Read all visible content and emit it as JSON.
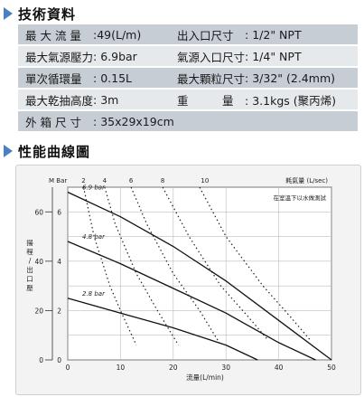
{
  "section1": {
    "title": "技術資料"
  },
  "specs": [
    [
      {
        "label": "最 大 流 量",
        "value": ":49(L/m)"
      },
      {
        "label": "出入口尺寸",
        "value": ": 1/2\" NPT"
      }
    ],
    [
      {
        "label": "最大氣源壓力",
        "value": ": 6.9bar"
      },
      {
        "label": "氣源入口尺寸",
        "value": ": 1/4\" NPT"
      }
    ],
    [
      {
        "label": "單次循環量",
        "value": ": 0.15L"
      },
      {
        "label": "最大顆粒尺寸",
        "value": ": 3/32\" (2.4mm)"
      }
    ],
    [
      {
        "label": "最大乾抽高度",
        "value": ": 3m"
      },
      {
        "label": "重　　　量",
        "value": ": 3.1kgs (聚丙烯)"
      }
    ],
    [
      {
        "label": "外 箱 尺 寸",
        "value": ": 35x29x19cm"
      }
    ]
  ],
  "section2": {
    "title": "性能曲線圖"
  },
  "chart_data": {
    "type": "line",
    "xlabel": "流量(L/min)",
    "x_ticks": [
      0,
      10,
      20,
      30,
      40,
      50
    ],
    "xlim": [
      0,
      50
    ],
    "y_left_ticks": [
      0,
      20,
      40,
      60
    ],
    "ylim_left": [
      0,
      70
    ],
    "y_left_label": "揚程/出口壓",
    "y_right_label": "M Bar",
    "y_right_ticks": [
      0,
      2,
      4,
      6
    ],
    "ylim_right": [
      0,
      7
    ],
    "air_label": "耗氣量 (L/sec)",
    "air_ticks": [
      2,
      4,
      6,
      8,
      10
    ],
    "note": "在室溫下以水做測試",
    "series": [
      {
        "name": "6.9 bar",
        "x": [
          0,
          10,
          20,
          30,
          40,
          50
        ],
        "y": [
          68,
          58,
          46,
          32,
          16,
          0
        ]
      },
      {
        "name": "4.8 bar",
        "x": [
          0,
          10,
          20,
          30,
          40,
          47
        ],
        "y": [
          48,
          39,
          29,
          19,
          7,
          0
        ]
      },
      {
        "name": "2.8 bar",
        "x": [
          0,
          10,
          20,
          30,
          36
        ],
        "y": [
          25,
          19,
          13,
          6,
          0
        ]
      }
    ],
    "air_curves": [
      {
        "name": "2",
        "x": [
          3,
          5,
          8,
          10,
          13
        ],
        "y": [
          70,
          50,
          30,
          20,
          6
        ]
      },
      {
        "name": "4",
        "x": [
          7,
          9,
          13,
          17,
          21
        ],
        "y": [
          70,
          55,
          35,
          20,
          6
        ]
      },
      {
        "name": "6",
        "x": [
          12,
          15,
          20,
          25,
          29
        ],
        "y": [
          70,
          55,
          35,
          20,
          6
        ]
      },
      {
        "name": "8",
        "x": [
          18,
          23,
          29,
          34,
          38
        ],
        "y": [
          70,
          50,
          30,
          18,
          8
        ]
      },
      {
        "name": "10",
        "x": [
          25,
          30,
          37,
          42,
          46
        ],
        "y": [
          70,
          50,
          30,
          18,
          8
        ]
      }
    ]
  }
}
